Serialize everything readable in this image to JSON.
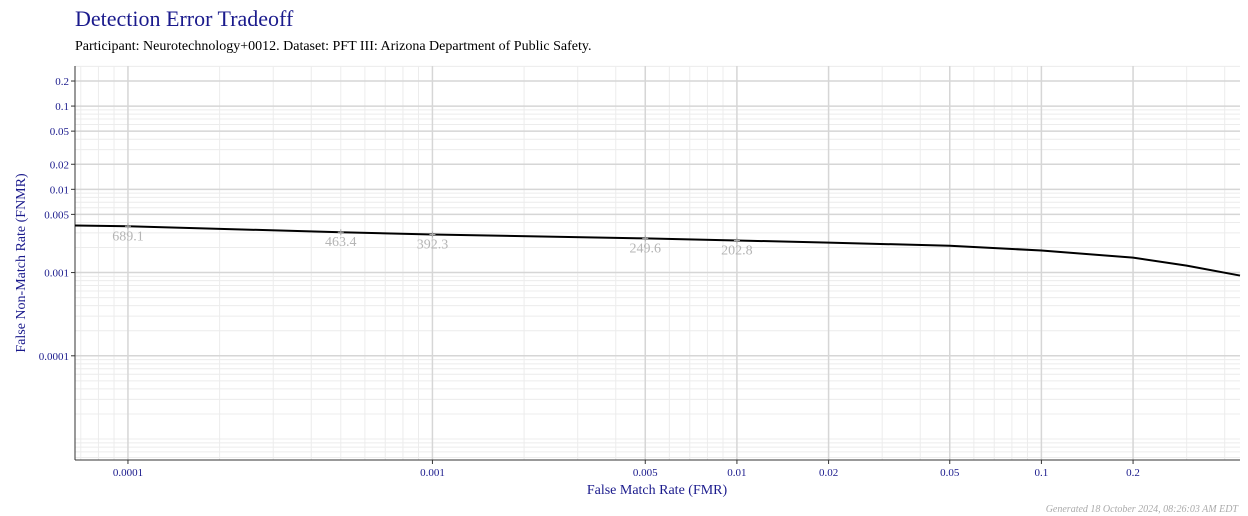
{
  "chart_data": {
    "type": "line",
    "title": "Detection Error Tradeoff",
    "subtitle": "Participant: Neurotechnology+0012. Dataset: PFT III: Arizona Department of Public Safety.",
    "x_label": "False Match Rate (FMR)",
    "y_label": "False Non-Match Rate (FNMR)",
    "footer": "Generated 18 October 2024, 08:26:03 AM EDT",
    "log_x": true,
    "log_y": true,
    "grid": true,
    "xlim": [
      6.7e-05,
      0.449
    ],
    "ylim": [
      5.6e-06,
      0.303
    ],
    "xticks": [
      0.0001,
      0.001,
      0.005,
      0.01,
      0.02,
      0.05,
      0.1,
      0.2
    ],
    "yticks": [
      0.0001,
      0.001,
      0.005,
      0.01,
      0.02,
      0.05,
      0.1,
      0.2
    ],
    "series": [
      {
        "name": "Neurotechnology+0012",
        "color": "#000000",
        "x": [
          6.7e-05,
          0.0001,
          0.0005,
          0.001,
          0.005,
          0.01,
          0.02,
          0.05,
          0.1,
          0.2,
          0.3,
          0.449
        ],
        "values": [
          0.00368,
          0.0036,
          0.00305,
          0.00287,
          0.00257,
          0.00243,
          0.00229,
          0.0021,
          0.00184,
          0.00151,
          0.00121,
          0.00092
        ]
      }
    ],
    "thresholds": [
      {
        "x": 0.0001,
        "y": 0.0036,
        "label": "689.1"
      },
      {
        "x": 0.0005,
        "y": 0.00305,
        "label": "463.4"
      },
      {
        "x": 0.001,
        "y": 0.00287,
        "label": "392.3"
      },
      {
        "x": 0.005,
        "y": 0.00257,
        "label": "249.6"
      },
      {
        "x": 0.01,
        "y": 0.00243,
        "label": "202.8"
      }
    ]
  }
}
